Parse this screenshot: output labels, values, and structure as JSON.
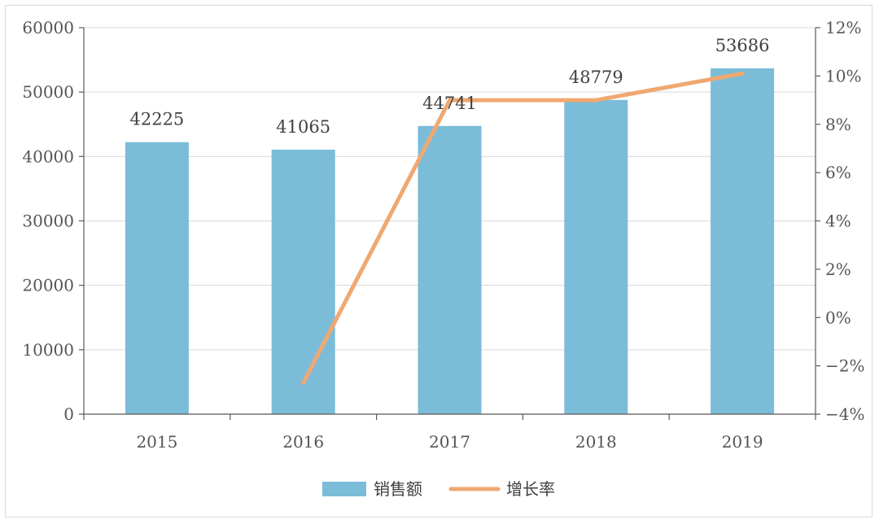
{
  "chart_data": {
    "type": "bar",
    "categories": [
      "2015",
      "2016",
      "2017",
      "2018",
      "2019"
    ],
    "series": [
      {
        "name": "销售额",
        "type": "bar",
        "axis": "left",
        "color": "#7bbcd9",
        "values": [
          42225,
          41065,
          44741,
          48779,
          53686
        ],
        "value_labels": [
          "42225",
          "41065",
          "44741",
          "48779",
          "53686"
        ]
      },
      {
        "name": "增长率",
        "type": "line",
        "axis": "right",
        "color": "#f0a871",
        "values": [
          null,
          -2.7,
          9.0,
          9.0,
          10.1
        ]
      }
    ],
    "y_left": {
      "lim": [
        0,
        60000
      ],
      "ticks": [
        0,
        10000,
        20000,
        30000,
        40000,
        50000,
        60000
      ],
      "tick_labels": [
        "0",
        "10000",
        "20000",
        "30000",
        "40000",
        "50000",
        "60000"
      ]
    },
    "y_right": {
      "lim": [
        -4,
        12
      ],
      "ticks": [
        -4,
        -2,
        0,
        2,
        4,
        6,
        8,
        10,
        12
      ],
      "tick_labels": [
        "−4%",
        "−2%",
        "0%",
        "2%",
        "4%",
        "6%",
        "8%",
        "10%",
        "12%"
      ]
    },
    "grid": true,
    "legend": {
      "position": "bottom-center",
      "items": [
        "销售额",
        "增长率"
      ]
    }
  }
}
